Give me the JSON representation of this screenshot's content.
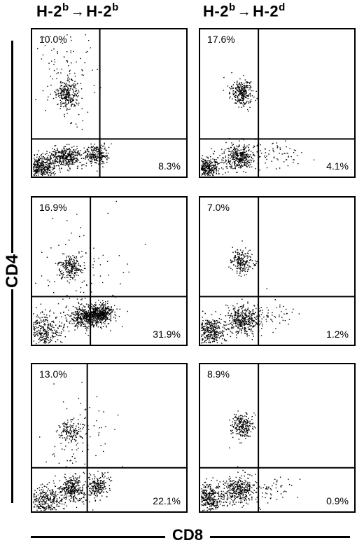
{
  "column_headers": [
    {
      "base": "H-2",
      "sup1": "b",
      "arrow": "→",
      "base2": "H-2",
      "sup2": "b"
    },
    {
      "base": "H-2",
      "sup1": "b",
      "arrow": "→",
      "base2": "H-2",
      "sup2": "d"
    }
  ],
  "chart_data": {
    "type": "scatter",
    "xlabel": "CD8",
    "ylabel": "CD4",
    "panels": [
      {
        "row": 0,
        "col": 0,
        "upper_left_label": "10.0%",
        "lower_right_label": "8.3%",
        "upper_left_pct": 10.0,
        "lower_right_pct": 8.3,
        "gate_x": 0.44,
        "gate_y": 0.74,
        "clusters": [
          {
            "cx": 0.23,
            "cy": 0.44,
            "sx": 0.035,
            "sy": 0.045,
            "n": 260
          },
          {
            "cx": 0.22,
            "cy": 0.86,
            "sx": 0.06,
            "sy": 0.035,
            "n": 380
          },
          {
            "cx": 0.42,
            "cy": 0.84,
            "sx": 0.04,
            "sy": 0.035,
            "n": 220
          },
          {
            "cx": 0.06,
            "cy": 0.93,
            "sx": 0.05,
            "sy": 0.04,
            "n": 420
          },
          {
            "cx": 0.2,
            "cy": 0.3,
            "sx": 0.12,
            "sy": 0.18,
            "n": 120
          }
        ]
      },
      {
        "row": 0,
        "col": 1,
        "upper_left_label": "17.6%",
        "lower_right_label": "4.1%",
        "upper_left_pct": 17.6,
        "lower_right_pct": 4.1,
        "gate_x": 0.38,
        "gate_y": 0.74,
        "clusters": [
          {
            "cx": 0.27,
            "cy": 0.43,
            "sx": 0.035,
            "sy": 0.045,
            "n": 280
          },
          {
            "cx": 0.25,
            "cy": 0.86,
            "sx": 0.05,
            "sy": 0.04,
            "n": 360
          },
          {
            "cx": 0.05,
            "cy": 0.93,
            "sx": 0.04,
            "sy": 0.035,
            "n": 320
          },
          {
            "cx": 0.5,
            "cy": 0.83,
            "sx": 0.1,
            "sy": 0.05,
            "n": 70
          }
        ]
      },
      {
        "row": 1,
        "col": 0,
        "upper_left_label": "16.9%",
        "lower_right_label": "31.9%",
        "upper_left_pct": 16.9,
        "lower_right_pct": 31.9,
        "gate_x": 0.38,
        "gate_y": 0.67,
        "clusters": [
          {
            "cx": 0.25,
            "cy": 0.47,
            "sx": 0.04,
            "sy": 0.04,
            "n": 230
          },
          {
            "cx": 0.35,
            "cy": 0.8,
            "sx": 0.055,
            "sy": 0.035,
            "n": 480
          },
          {
            "cx": 0.45,
            "cy": 0.78,
            "sx": 0.04,
            "sy": 0.035,
            "n": 340
          },
          {
            "cx": 0.08,
            "cy": 0.9,
            "sx": 0.06,
            "sy": 0.06,
            "n": 320
          },
          {
            "cx": 0.3,
            "cy": 0.5,
            "sx": 0.15,
            "sy": 0.2,
            "n": 110
          }
        ]
      },
      {
        "row": 1,
        "col": 1,
        "upper_left_label": "7.0%",
        "lower_right_label": "1.2%",
        "upper_left_pct": 7.0,
        "lower_right_pct": 1.2,
        "gate_x": 0.38,
        "gate_y": 0.67,
        "clusters": [
          {
            "cx": 0.27,
            "cy": 0.43,
            "sx": 0.035,
            "sy": 0.04,
            "n": 200
          },
          {
            "cx": 0.28,
            "cy": 0.82,
            "sx": 0.05,
            "sy": 0.05,
            "n": 380
          },
          {
            "cx": 0.06,
            "cy": 0.9,
            "sx": 0.05,
            "sy": 0.05,
            "n": 360
          },
          {
            "cx": 0.45,
            "cy": 0.8,
            "sx": 0.08,
            "sy": 0.05,
            "n": 60
          }
        ]
      },
      {
        "row": 2,
        "col": 0,
        "upper_left_label": "13.0%",
        "lower_right_label": "22.1%",
        "upper_left_pct": 13.0,
        "lower_right_pct": 22.1,
        "gate_x": 0.36,
        "gate_y": 0.7,
        "clusters": [
          {
            "cx": 0.25,
            "cy": 0.46,
            "sx": 0.04,
            "sy": 0.045,
            "n": 150
          },
          {
            "cx": 0.26,
            "cy": 0.84,
            "sx": 0.04,
            "sy": 0.045,
            "n": 300
          },
          {
            "cx": 0.42,
            "cy": 0.82,
            "sx": 0.035,
            "sy": 0.04,
            "n": 200
          },
          {
            "cx": 0.08,
            "cy": 0.92,
            "sx": 0.06,
            "sy": 0.05,
            "n": 360
          },
          {
            "cx": 0.3,
            "cy": 0.55,
            "sx": 0.15,
            "sy": 0.2,
            "n": 90
          }
        ]
      },
      {
        "row": 2,
        "col": 1,
        "upper_left_label": "8.9%",
        "lower_right_label": "0.9%",
        "upper_left_pct": 8.9,
        "lower_right_pct": 0.9,
        "gate_x": 0.38,
        "gate_y": 0.7,
        "clusters": [
          {
            "cx": 0.27,
            "cy": 0.42,
            "sx": 0.035,
            "sy": 0.04,
            "n": 230
          },
          {
            "cx": 0.25,
            "cy": 0.85,
            "sx": 0.05,
            "sy": 0.045,
            "n": 340
          },
          {
            "cx": 0.06,
            "cy": 0.9,
            "sx": 0.05,
            "sy": 0.05,
            "n": 380
          },
          {
            "cx": 0.45,
            "cy": 0.84,
            "sx": 0.07,
            "sy": 0.04,
            "n": 60
          }
        ]
      }
    ]
  }
}
